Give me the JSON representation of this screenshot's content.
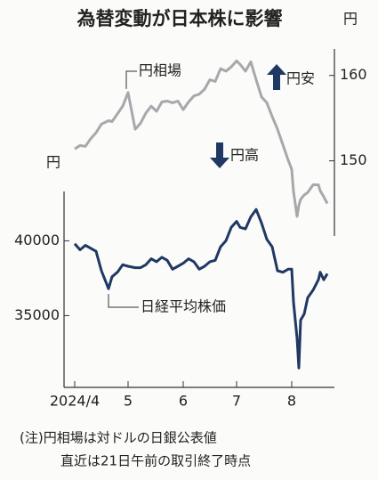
{
  "chart_data": {
    "type": "line",
    "title": "為替変動が日本株に影響",
    "x": [
      0,
      3,
      6,
      9,
      12,
      15,
      18,
      19,
      21,
      24,
      27,
      30,
      34,
      37,
      40,
      43,
      46,
      49,
      52,
      55,
      58,
      61,
      64,
      67,
      70,
      73,
      76,
      79,
      82,
      85,
      88,
      91,
      93,
      96,
      99,
      102,
      105,
      108,
      111,
      114,
      117,
      120,
      122,
      123,
      125,
      126,
      127,
      129,
      131,
      134,
      137,
      138,
      140,
      142
    ],
    "xlim": [
      -6,
      146
    ],
    "xticks": [
      {
        "value": 0,
        "label": "2024/4"
      },
      {
        "value": 30,
        "label": "5"
      },
      {
        "value": 61,
        "label": "6"
      },
      {
        "value": 91,
        "label": "7"
      },
      {
        "value": 122,
        "label": "8"
      }
    ],
    "ylabel": "円",
    "ylim": [
      30200,
      43300
    ],
    "yticks": [
      35000,
      40000
    ],
    "y2label": "円",
    "y2lim": [
      141.2,
      163.1
    ],
    "y2ticks": [
      150,
      160
    ],
    "series": [
      {
        "name": "円相場",
        "color": "#a6a8ab",
        "axis": "y2",
        "values": [
          151.4,
          151.8,
          151.7,
          152.6,
          153.3,
          154.3,
          154.6,
          154.7,
          154.6,
          155.5,
          156.4,
          158.0,
          153.7,
          154.4,
          155.6,
          156.4,
          155.8,
          156.9,
          157.0,
          156.8,
          157.0,
          156.0,
          156.9,
          157.6,
          157.8,
          158.4,
          159.5,
          159.3,
          160.8,
          160.5,
          161.0,
          161.7,
          161.3,
          160.5,
          161.6,
          159.5,
          157.5,
          156.8,
          155.2,
          153.7,
          151.9,
          150.1,
          149.0,
          146.4,
          143.5,
          144.8,
          145.5,
          146.0,
          146.3,
          147.2,
          147.2,
          146.5,
          145.8,
          145.0
        ]
      },
      {
        "name": "日経平均株価",
        "color": "#1f3864",
        "values": [
          39800,
          39400,
          39700,
          39500,
          39300,
          38000,
          37100,
          36800,
          37600,
          37900,
          38400,
          38300,
          38200,
          38200,
          38400,
          38800,
          38600,
          38900,
          38700,
          38100,
          38300,
          38500,
          38800,
          38600,
          38100,
          38300,
          38600,
          38700,
          39600,
          40000,
          40900,
          41300,
          40900,
          40800,
          41600,
          42100,
          41200,
          40100,
          39600,
          38000,
          37900,
          38100,
          38100,
          35900,
          33500,
          31500,
          34700,
          35100,
          36200,
          36700,
          37400,
          37900,
          37400,
          37800
        ]
      }
    ],
    "annotations": [
      "円安",
      "円高"
    ],
    "notes": [
      "(注)円相場は対ドルの日銀公表値",
      "直近は21日午前の取引終了時点"
    ]
  }
}
